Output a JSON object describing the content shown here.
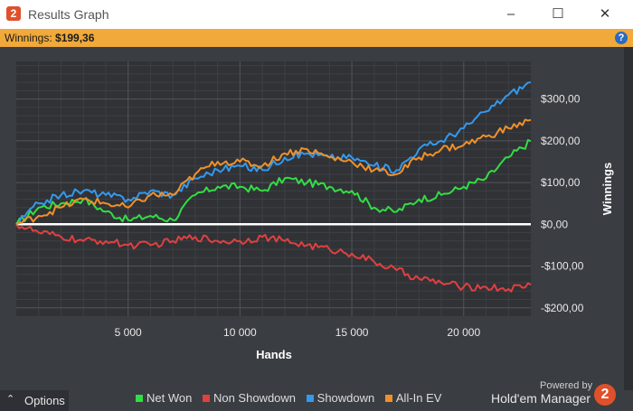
{
  "window": {
    "title": "Results Graph",
    "minimize": "–",
    "maximize": "☐",
    "close": "✕"
  },
  "winnings": {
    "label": "Winnings:",
    "value": "$199,36"
  },
  "footer": {
    "options_label": "Options",
    "powered_by": "Powered by",
    "brand": "Hold'em Manager",
    "brand_icon_text": "2"
  },
  "colors": {
    "net_won": "#33dd44",
    "non_showdown": "#e04040",
    "showdown": "#3399ee",
    "all_in_ev": "#f0902a"
  },
  "chart_data": {
    "type": "line",
    "title": "",
    "xlabel": "Hands",
    "ylabel": "Winnings",
    "xlim": [
      0,
      23000
    ],
    "ylim": [
      -220,
      390
    ],
    "x_ticks": [
      5000,
      10000,
      15000,
      20000
    ],
    "x_tick_labels": [
      "5 000",
      "10 000",
      "15 000",
      "20 000"
    ],
    "y_ticks": [
      300,
      200,
      100,
      0,
      -100,
      -200
    ],
    "y_tick_labels": [
      "$300,00",
      "$200,00",
      "$100,00",
      "$0,00",
      "-$100,00",
      "-$200,00"
    ],
    "grid": true,
    "legend_position": "bottom",
    "x": [
      0,
      1000,
      2000,
      3000,
      4000,
      5000,
      6000,
      7000,
      8000,
      9000,
      10000,
      11000,
      12000,
      13000,
      14000,
      15000,
      16000,
      17000,
      18000,
      19000,
      20000,
      21000,
      22000,
      23000
    ],
    "series": [
      {
        "name": "Net Won",
        "color": "#33dd44",
        "values": [
          0,
          40,
          50,
          60,
          30,
          10,
          20,
          10,
          70,
          90,
          90,
          80,
          110,
          100,
          90,
          80,
          40,
          30,
          60,
          70,
          90,
          110,
          160,
          199
        ]
      },
      {
        "name": "Non Showdown",
        "color": "#e04040",
        "values": [
          0,
          -20,
          -30,
          -40,
          -40,
          -50,
          -50,
          -40,
          -30,
          -40,
          -40,
          -30,
          -40,
          -50,
          -60,
          -70,
          -90,
          -110,
          -130,
          -140,
          -150,
          -150,
          -155,
          -145
        ]
      },
      {
        "name": "Showdown",
        "color": "#3399ee",
        "values": [
          0,
          50,
          70,
          80,
          70,
          60,
          80,
          70,
          110,
          130,
          140,
          130,
          160,
          170,
          160,
          160,
          140,
          130,
          180,
          200,
          230,
          270,
          310,
          340
        ]
      },
      {
        "name": "All-In EV",
        "color": "#f0902a",
        "values": [
          0,
          20,
          40,
          60,
          50,
          40,
          70,
          70,
          120,
          150,
          150,
          140,
          170,
          180,
          160,
          150,
          130,
          120,
          160,
          180,
          190,
          210,
          230,
          250
        ]
      }
    ]
  }
}
